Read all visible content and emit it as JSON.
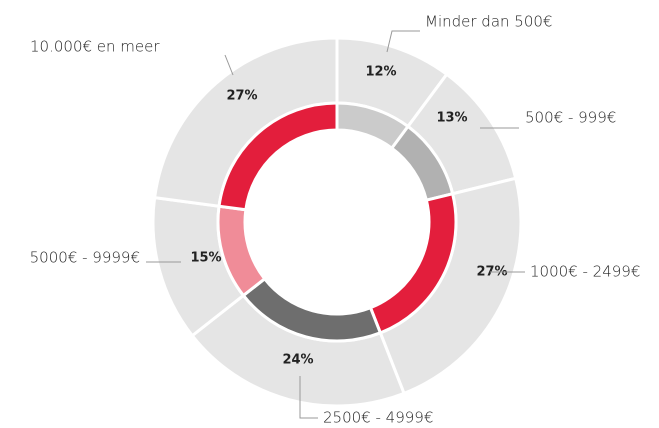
{
  "chart_data": {
    "type": "donut",
    "categories": [
      "Minder dan 500€",
      "500€ - 999€",
      "1000€ - 2499€",
      "2500€ - 4999€",
      "5000€ - 9999€",
      "10.000€ en meer"
    ],
    "values": [
      12,
      13,
      27,
      24,
      15,
      27
    ],
    "value_labels": [
      "12%",
      "13%",
      "27%",
      "24%",
      "15%",
      "27%"
    ],
    "colors": [
      "#cbcbcb",
      "#b1b1b1",
      "#e31e3c",
      "#6e6e6e",
      "#f08c98",
      "#e31e3c"
    ],
    "outer_color": "#e5e5e5"
  }
}
